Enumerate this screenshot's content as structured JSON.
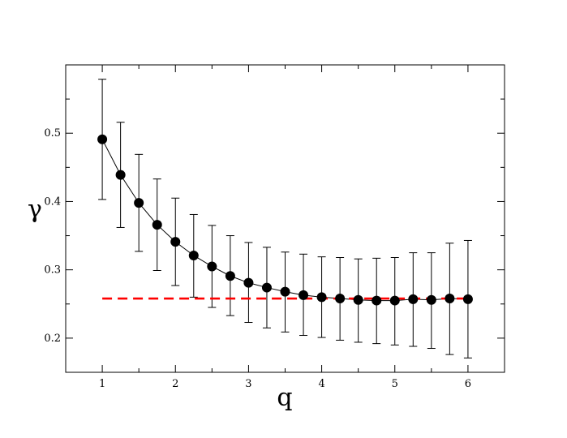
{
  "chart_data": {
    "type": "scatter",
    "xlabel": "q",
    "ylabel": "γ",
    "xlim": [
      0.5,
      6.5
    ],
    "ylim": [
      0.15,
      0.6
    ],
    "grid": false,
    "xticks": [
      1,
      2,
      3,
      4,
      5,
      6
    ],
    "xtick_labels": [
      "1",
      "2",
      "3",
      "4",
      "5",
      "6"
    ],
    "yticks": [
      0.2,
      0.3,
      0.4,
      0.5
    ],
    "ytick_labels": [
      "0.2",
      "0.3",
      "0.4",
      "0.5"
    ],
    "series": [
      {
        "style": "line-markers-errorbars",
        "color": "#000000",
        "x": [
          1,
          1.25,
          1.5,
          1.75,
          2,
          2.25,
          2.5,
          2.75,
          3,
          3.25,
          3.5,
          3.75,
          4,
          4.25,
          4.5,
          4.75,
          5,
          5.25,
          5.5,
          5.75,
          6
        ],
        "y": [
          0.491,
          0.439,
          0.398,
          0.366,
          0.341,
          0.321,
          0.305,
          0.291,
          0.281,
          0.274,
          0.268,
          0.263,
          0.26,
          0.258,
          0.256,
          0.255,
          0.255,
          0.257,
          0.256,
          0.258,
          0.257
        ],
        "err_low": [
          0.403,
          0.362,
          0.327,
          0.299,
          0.277,
          0.26,
          0.245,
          0.233,
          0.223,
          0.215,
          0.209,
          0.204,
          0.201,
          0.197,
          0.194,
          0.192,
          0.19,
          0.188,
          0.185,
          0.176,
          0.171
        ],
        "err_high": [
          0.579,
          0.516,
          0.469,
          0.433,
          0.405,
          0.381,
          0.365,
          0.35,
          0.34,
          0.333,
          0.326,
          0.323,
          0.319,
          0.318,
          0.316,
          0.317,
          0.318,
          0.325,
          0.325,
          0.339,
          0.343
        ]
      },
      {
        "style": "dashed-line",
        "color": "#ff0000",
        "x": [
          1,
          6
        ],
        "y": [
          0.258,
          0.258
        ]
      }
    ]
  }
}
